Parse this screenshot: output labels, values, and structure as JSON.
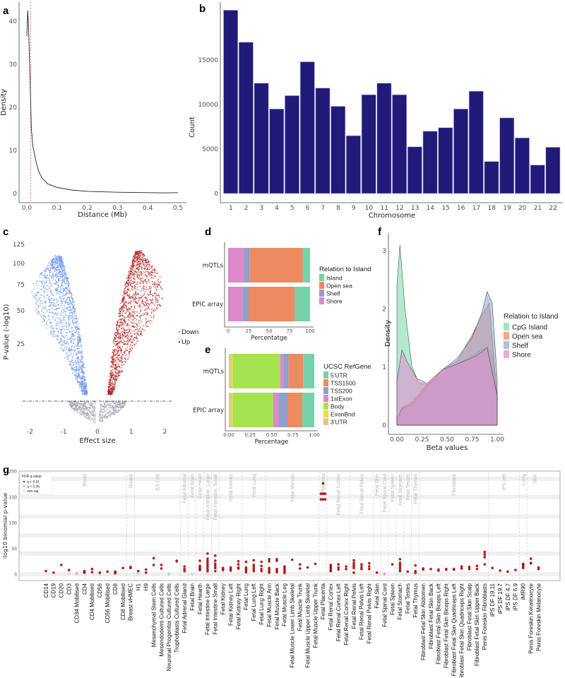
{
  "panel_labels": [
    "a",
    "b",
    "c",
    "d",
    "e",
    "f",
    "g"
  ],
  "chart_data": [
    {
      "panel": "a",
      "type": "line",
      "xlabel": "Distance (Mb)",
      "ylabel": "Density",
      "xticks": [
        "0.0",
        "0.1",
        "0.2",
        "0.3",
        "0.4",
        "0.5"
      ],
      "yticks": [
        "0",
        "10",
        "20",
        "30",
        "40"
      ],
      "xlim": [
        0,
        0.5
      ],
      "ylim": [
        0,
        43
      ],
      "reference_line_x": 0.0125,
      "reference_line_color": "#e8534f",
      "x": [
        0,
        0.003,
        0.006,
        0.01,
        0.015,
        0.02,
        0.03,
        0.04,
        0.05,
        0.07,
        0.1,
        0.15,
        0.2,
        0.3,
        0.4,
        0.45,
        0.5
      ],
      "y": [
        36.5,
        42.5,
        38,
        28,
        15,
        11,
        7.5,
        5,
        3.6,
        2.2,
        1.4,
        0.8,
        0.5,
        0.3,
        0.2,
        0.15,
        0.2
      ]
    },
    {
      "panel": "b",
      "type": "bar",
      "xlabel": "Chromosome",
      "ylabel": "Count",
      "categories": [
        "1",
        "2",
        "3",
        "4",
        "5",
        "6",
        "7",
        "8",
        "9",
        "10",
        "11",
        "12",
        "13",
        "14",
        "15",
        "16",
        "17",
        "18",
        "19",
        "20",
        "21",
        "22"
      ],
      "values": [
        20600,
        17000,
        12400,
        9500,
        11000,
        14800,
        11850,
        9800,
        6500,
        11100,
        12400,
        11100,
        5250,
        7000,
        7400,
        9500,
        11500,
        3600,
        8500,
        6250,
        3200,
        5200
      ],
      "yticks": [
        "0",
        "5000",
        "10000",
        "15000"
      ],
      "ylim": [
        0,
        21000
      ],
      "bar_color": "#221a78"
    },
    {
      "panel": "c",
      "type": "scatter",
      "xlabel": "Effect size",
      "ylabel": "P-value (-log10)",
      "xticks": [
        "-2",
        "-1",
        "0",
        "1",
        "2"
      ],
      "yticks": [
        "25",
        "50",
        "75",
        "100",
        "125"
      ],
      "xlim": [
        -2,
        2
      ],
      "legend": [
        {
          "name": "Down",
          "color": "#6f97ee"
        },
        {
          "name": "Up",
          "color": "#b22222"
        }
      ],
      "nonsig_color": "#a8a8b3"
    },
    {
      "panel": "d",
      "type": "bar",
      "orientation": "horizontal-stacked",
      "xlabel": "Percentatge",
      "xticks": [
        "0",
        "25",
        "50",
        "75",
        "100"
      ],
      "categories": [
        "mQTLs",
        "EPIC array"
      ],
      "legend_title": "Relation to Island",
      "series": [
        {
          "name": "Shore",
          "color": "#df88cc",
          "values": [
            19,
            18
          ]
        },
        {
          "name": "Shelf",
          "color": "#8fa0cb",
          "values": [
            7,
            7
          ]
        },
        {
          "name": "Open sea",
          "color": "#ee8a5f",
          "values": [
            65,
            56
          ]
        },
        {
          "name": "Island",
          "color": "#78d1a8",
          "values": [
            9,
            19
          ]
        }
      ],
      "legend_order": [
        "Island",
        "Open sea",
        "Shelf",
        "Shore"
      ]
    },
    {
      "panel": "e",
      "type": "bar",
      "orientation": "horizontal-stacked",
      "xlabel": "Percentage",
      "xticks": [
        "0.00",
        "0.25",
        "0.50",
        "0.75",
        "1.00"
      ],
      "categories": [
        "mQTLs",
        "EPIC array"
      ],
      "legend_title": "UCSC RefGene",
      "series": [
        {
          "name": "3'UTR",
          "color": "#e2c593",
          "values": [
            0.035,
            0.035
          ]
        },
        {
          "name": "ExonBnd",
          "color": "#f0dc3a",
          "values": [
            0.01,
            0.01
          ]
        },
        {
          "name": "Body",
          "color": "#a6e350",
          "values": [
            0.555,
            0.475
          ]
        },
        {
          "name": "1stExon",
          "color": "#df88cc",
          "values": [
            0.04,
            0.06
          ]
        },
        {
          "name": "TSS200",
          "color": "#8fa0cb",
          "values": [
            0.06,
            0.11
          ]
        },
        {
          "name": "TSS1500",
          "color": "#ee8a5f",
          "values": [
            0.17,
            0.17
          ]
        },
        {
          "name": "5'UTR",
          "color": "#78d1a8",
          "values": [
            0.13,
            0.14
          ]
        }
      ],
      "legend_order": [
        "5'UTR",
        "TSS1500",
        "TSS200",
        "1stExon",
        "Body",
        "ExonBnd",
        "3'UTR"
      ]
    },
    {
      "panel": "f",
      "type": "area",
      "xlabel": "Beta values",
      "ylabel": "Density",
      "xticks": [
        "0.00",
        "0.25",
        "0.50",
        "0.75",
        "1.00"
      ],
      "yticks": [
        "0",
        "1",
        "2",
        "3"
      ],
      "xlim": [
        0,
        1
      ],
      "ylim": [
        0,
        3.2
      ],
      "legend_title": "Relation to Island",
      "series": [
        {
          "name": "CpG Island",
          "color": "#7fdcb0",
          "x": [
            0,
            0.03,
            0.08,
            0.15,
            0.22,
            0.3,
            0.45,
            0.6,
            0.75,
            0.85,
            0.9,
            0.95,
            1.0
          ],
          "y": [
            2.4,
            3.1,
            2.0,
            1.0,
            0.72,
            0.7,
            0.85,
            1.05,
            1.2,
            1.3,
            1.35,
            1.2,
            0.5
          ]
        },
        {
          "name": "Open sea",
          "color": "#f08a60",
          "x": [
            0,
            0.05,
            0.15,
            0.3,
            0.45,
            0.6,
            0.75,
            0.85,
            0.92,
            1.0
          ],
          "y": [
            0.1,
            0.3,
            0.4,
            0.7,
            0.95,
            1.1,
            1.55,
            1.9,
            2.1,
            0.5
          ]
        },
        {
          "name": "Shelf",
          "color": "#9aa8d8",
          "x": [
            0,
            0.05,
            0.15,
            0.3,
            0.45,
            0.6,
            0.75,
            0.85,
            0.9,
            0.95,
            1.0
          ],
          "y": [
            0.1,
            0.28,
            0.35,
            0.65,
            0.95,
            1.15,
            1.5,
            1.95,
            2.3,
            2.1,
            0.8
          ]
        },
        {
          "name": "Shore",
          "color": "#e08fd0",
          "x": [
            0,
            0.05,
            0.1,
            0.2,
            0.3,
            0.45,
            0.6,
            0.7,
            0.8,
            0.9,
            1.0
          ],
          "y": [
            0.75,
            1.3,
            1.1,
            0.8,
            0.72,
            0.95,
            1.05,
            1.12,
            1.2,
            1.33,
            0.5
          ]
        }
      ]
    },
    {
      "panel": "g",
      "type": "scatter",
      "ylabel": "-log10 binomial p-value",
      "yticks": [
        "0",
        "50",
        "100",
        "150",
        "200"
      ],
      "ylim": [
        0,
        200
      ],
      "legend_title": "FDR q-value",
      "legend": [
        {
          "name": "q < 0.01",
          "color": "#d7191c"
        },
        {
          "name": "q < 0.05",
          "color": "#f08cb4"
        },
        {
          "name": "non-sig",
          "color": "#8fc1de"
        }
      ],
      "groups": [
        {
          "name": "Blood",
          "count": 11
        },
        {
          "name": "Breast",
          "count": 1
        },
        {
          "name": "ES Cell",
          "count": 6
        },
        {
          "name": "Fetal Adrenal",
          "count": 1
        },
        {
          "name": "Fetal Brain",
          "count": 1
        },
        {
          "name": "Fetal Heart",
          "count": 1
        },
        {
          "name": "Fetal Intestine, Large",
          "count": 1
        },
        {
          "name": "Fetal Intestine, Small",
          "count": 1
        },
        {
          "name": "Fetal Kidney",
          "count": 3
        },
        {
          "name": "Fetal Lung",
          "count": 3
        },
        {
          "name": "Fetal Muscle",
          "count": 7
        },
        {
          "name": "Placenta",
          "count": 1
        },
        {
          "name": "Fetal Renal Cortex",
          "count": 3
        },
        {
          "name": "Fetal Renal Pelvis",
          "count": 3
        },
        {
          "name": "Fetal Skin",
          "count": 1
        },
        {
          "name": "Fetal Spinal Cord",
          "count": 1
        },
        {
          "name": "Fetal Spleen",
          "count": 1
        },
        {
          "name": "Fetal Stomach",
          "count": 1
        },
        {
          "name": "Fetal Testes",
          "count": 1
        },
        {
          "name": "Fetal Thymus",
          "count": 1
        },
        {
          "name": "Fibroblast",
          "count": 9
        },
        {
          "name": "iPS cell",
          "count": 4
        },
        {
          "name": "Lung",
          "count": 1
        },
        {
          "name": "Skin",
          "count": 2
        }
      ],
      "categories": [
        {
          "name": "CD14",
          "q01": [
            6
          ]
        },
        {
          "name": "CD19",
          "q01": [
            3
          ]
        },
        {
          "name": "CD20",
          "q01": [
            18
          ]
        },
        {
          "name": "CD3",
          "q01": [
            8
          ],
          "ns": [
            1
          ]
        },
        {
          "name": "CD34 Mobilised",
          "q05": [
            2
          ],
          "ns": [
            0
          ]
        },
        {
          "name": "CD4",
          "q01": [
            3,
            4,
            5,
            6
          ]
        },
        {
          "name": "CD4 Mobilised",
          "q01": [
            4,
            10
          ]
        },
        {
          "name": "CD56",
          "q01": [
            3
          ],
          "ns": [
            0
          ]
        },
        {
          "name": "CD56 Mobilised",
          "q01": [
            5
          ]
        },
        {
          "name": "CD8",
          "q01": [
            2,
            4,
            5
          ],
          "ns": [
            1
          ]
        },
        {
          "name": "CD8 Mobilised",
          "q01": [
            12
          ]
        },
        {
          "name": "Breast vHMEC",
          "q01": [
            12,
            14
          ]
        },
        {
          "name": "H1",
          "q01": [
            6
          ],
          "ns": [
            1
          ]
        },
        {
          "name": "H9",
          "q01": [
            3,
            9
          ]
        },
        {
          "name": "Mesenchymal Stem Cells",
          "q01": [
            18,
            31
          ]
        },
        {
          "name": "Mesendoderm Cultured Cells",
          "q01": [
            11,
            18
          ]
        },
        {
          "name": "Neuronal Progenitor Cultured Cells",
          "ns": [
            0,
            1
          ]
        },
        {
          "name": "Trophoblasts Cultured Cells",
          "q01": [
            25,
            26
          ]
        },
        {
          "name": "Fetal Adrenal Gland",
          "q01": [
            6,
            10,
            15
          ]
        },
        {
          "name": "Fetal Brain",
          "ns": [
            0
          ]
        },
        {
          "name": "Fetal Hearth",
          "q01": [
            8,
            10,
            12,
            14,
            16,
            26
          ]
        },
        {
          "name": "Fetal Intestine Large",
          "q01": [
            6,
            10,
            14,
            18,
            22,
            26,
            30,
            40
          ],
          "ns": [
            1
          ]
        },
        {
          "name": "Fetal Intestine Small",
          "q01": [
            6,
            12,
            16,
            20,
            26,
            36
          ]
        },
        {
          "name": "Fetal Kidney",
          "q01": [
            8,
            10,
            12
          ]
        },
        {
          "name": "Fetal Kidney Left",
          "q01": [
            7,
            10,
            13
          ]
        },
        {
          "name": "Fetal Kidney Right",
          "q01": [
            11,
            13,
            19,
            25
          ]
        },
        {
          "name": "Fetal Lung",
          "q01": [
            4,
            7,
            10,
            13,
            24
          ]
        },
        {
          "name": "Fetal Lung Left",
          "q01": [
            6,
            10,
            14,
            18,
            27
          ]
        },
        {
          "name": "Fetal Lung Right",
          "q01": [
            6,
            10,
            16,
            24
          ]
        },
        {
          "name": "Fetal Muscle Arm",
          "q01": [
            3,
            6,
            9,
            12,
            25,
            29
          ]
        },
        {
          "name": "Fetal Muscle Back",
          "q01": [
            4,
            7,
            10,
            26,
            29
          ]
        },
        {
          "name": "Fetal Muscle Leg",
          "q01": [
            3,
            6,
            9,
            12,
            15
          ],
          "q05": [
            1
          ]
        },
        {
          "name": "Fetal Muscle Lower Limb Skeletal",
          "q01": [
            28
          ]
        },
        {
          "name": "Fetal Muscle Trunk",
          "q01": [
            11,
            19
          ]
        },
        {
          "name": "Fetal Muscle Upper Limb Skeletal",
          "q01": [
            13
          ]
        },
        {
          "name": "Fetal Muscle Upper Trunk",
          "q01": [
            20
          ]
        },
        {
          "name": "Fetal Placenta",
          "q01": [
            145,
            145,
            145,
            156,
            156,
            156,
            176
          ]
        },
        {
          "name": "Fetal Renal Cortex",
          "q01": [
            6,
            9,
            12,
            15,
            18
          ]
        },
        {
          "name": "Fetal Renal Cortex Left",
          "q01": [
            9,
            13,
            19
          ]
        },
        {
          "name": "Fetal Renal Cortex Right",
          "q01": [
            10,
            15
          ]
        },
        {
          "name": "Fetal Renal Pelvis",
          "q01": [
            3,
            12,
            15,
            18,
            22,
            27
          ]
        },
        {
          "name": "Fetal Renal Pelvis Left",
          "q01": [
            10,
            14,
            19
          ]
        },
        {
          "name": "Fetal Renal Pelvis Right",
          "q01": [
            10,
            15,
            21
          ]
        },
        {
          "name": "Fetal Skin",
          "q01": [
            3
          ]
        },
        {
          "name": "Fetal Spinal Cord",
          "q05": [
            1
          ],
          "ns": [
            0
          ]
        },
        {
          "name": "Fetal Spleen",
          "q01": [
            19
          ]
        },
        {
          "name": "Fetal Stomach",
          "q01": [
            6,
            10,
            14,
            18,
            22,
            29
          ]
        },
        {
          "name": "Fetal Testes",
          "q01": [
            5
          ]
        },
        {
          "name": "Fetal Thymus",
          "q01": [
            3,
            6,
            17
          ],
          "q05": [
            1
          ]
        },
        {
          "name": "Fibroblast Fetal Skin Abdomen",
          "q01": [
            9,
            11
          ]
        },
        {
          "name": "Fibroblast Fetal Skin Back",
          "q01": [
            10
          ]
        },
        {
          "name": "Fibroblast Fetal Skin Biceps Left",
          "q01": [
            7,
            9
          ]
        },
        {
          "name": "Fibroblast Fetal Skin Biceps Right",
          "q01": [
            9,
            10
          ]
        },
        {
          "name": "Fibroblast Fetal Skin Quadriceps Left",
          "q01": [
            9,
            10
          ]
        },
        {
          "name": "Fibroblast Fetal Skin Quadriceps Right",
          "q01": [
            11,
            15
          ]
        },
        {
          "name": "Fibroblast Fetal Skin Scalp",
          "q01": [
            10,
            14
          ]
        },
        {
          "name": "Fibroblast Fetal Skin Upper Back",
          "q01": [
            10,
            16
          ]
        },
        {
          "name": "Penis Foreskin Fibroblasts",
          "q01": [
            19,
            33,
            38,
            43
          ]
        },
        {
          "name": "iPS DF 19.11",
          "q01": [
            12
          ]
        },
        {
          "name": "iPS DF 19.7",
          "q01": [
            7
          ]
        },
        {
          "name": "iPS DF 4.7",
          "q01": [
            5
          ]
        },
        {
          "name": "iPS DF 6.9",
          "q01": [
            8
          ]
        },
        {
          "name": "iMR90",
          "q01": [
            12,
            15,
            18,
            20
          ]
        },
        {
          "name": "Penis Foreskin Keratinocyte",
          "q01": [
            21,
            22,
            30
          ]
        },
        {
          "name": "Penis Foreskin Melanocyte",
          "q01": [
            10,
            13
          ]
        }
      ]
    }
  ]
}
